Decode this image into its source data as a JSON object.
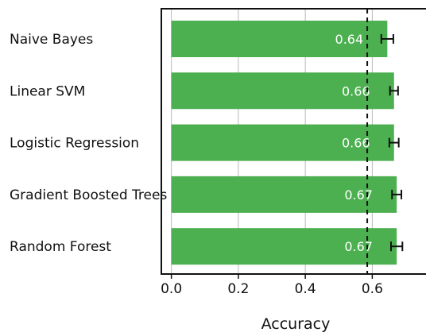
{
  "chart_data": {
    "type": "bar",
    "orientation": "horizontal",
    "categories": [
      "Naive Bayes",
      "Linear SVM",
      "Logistic Regression",
      "Gradient Boosted Trees",
      "Random Forest"
    ],
    "values": [
      0.645,
      0.665,
      0.665,
      0.673,
      0.673
    ],
    "errors": [
      0.018,
      0.012,
      0.014,
      0.014,
      0.017
    ],
    "value_labels": [
      "0.64",
      "0.66",
      "0.66",
      "0.67",
      "0.67"
    ],
    "xlabel": "Accuracy",
    "ylabel": "",
    "xlim": [
      -0.03,
      0.77
    ],
    "xticks": [
      0.0,
      0.2,
      0.4,
      0.6
    ],
    "xtick_labels": [
      "0.0",
      "0.2",
      "0.4",
      "0.6"
    ],
    "reference_line": 0.585,
    "grid": "vertical",
    "legend": "none",
    "bar_color": "#4caf50"
  }
}
